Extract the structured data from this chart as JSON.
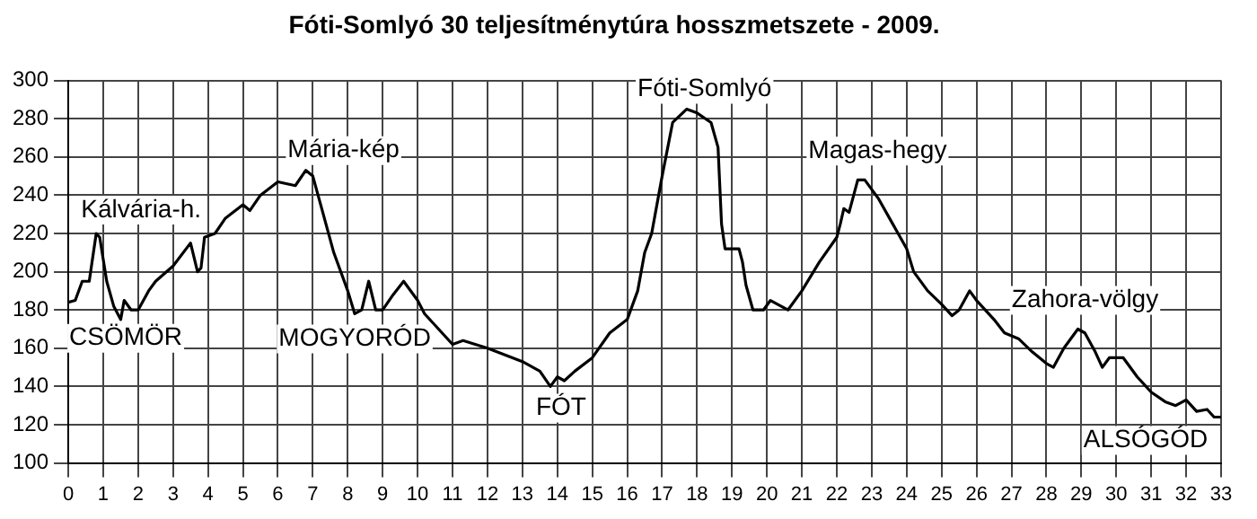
{
  "chart_data": {
    "type": "line",
    "title": "Fóti-Somlyó 30 teljesítménytúra hosszmetszete - 2009.",
    "series": [
      {
        "color": "#000000",
        "x": [
          0,
          0.2,
          0.4,
          0.6,
          0.8,
          0.9,
          1.1,
          1.3,
          1.5,
          1.6,
          1.8,
          2.0,
          2.3,
          2.5,
          3.0,
          3.5,
          3.7,
          3.8,
          3.9,
          4.2,
          4.5,
          5.0,
          5.2,
          5.5,
          6.0,
          6.5,
          6.8,
          7.0,
          7.3,
          7.6,
          8.0,
          8.2,
          8.4,
          8.6,
          8.8,
          9.0,
          9.3,
          9.6,
          10.0,
          10.2,
          10.6,
          11.0,
          11.3,
          12,
          13,
          13.5,
          13.8,
          14.0,
          14.2,
          14.5,
          15,
          15.5,
          16,
          16.3,
          16.5,
          16.7,
          16.9,
          17,
          17.3,
          17.7,
          18,
          18.4,
          18.6,
          18.7,
          18.8,
          19.2,
          19.3,
          19.4,
          19.6,
          19.9,
          20.1,
          20.6,
          21,
          21.5,
          22,
          22.1,
          22.2,
          22.35,
          22.6,
          22.8,
          23.2,
          23.6,
          24,
          24.2,
          24.6,
          25,
          25.3,
          25.5,
          25.8,
          26,
          26.5,
          26.8,
          27.2,
          27.6,
          28,
          28.2,
          28.5,
          28.9,
          29.1,
          29.4,
          29.6,
          29.8,
          30.2,
          30.6,
          31,
          31.4,
          31.7,
          32,
          32.3,
          32.6,
          32.8,
          33
        ],
        "values": [
          184,
          185,
          195,
          195,
          220,
          218,
          195,
          182,
          175,
          185,
          180,
          180,
          190,
          195,
          203,
          215,
          200,
          202,
          218,
          220,
          228,
          235,
          232,
          240,
          247,
          245,
          253,
          250,
          230,
          210,
          190,
          178,
          180,
          195,
          180,
          180,
          188,
          195,
          185,
          178,
          170,
          162,
          164,
          160,
          153,
          148,
          140,
          145,
          143,
          148,
          155,
          168,
          175,
          190,
          210,
          220,
          240,
          250,
          278,
          285,
          283,
          278,
          265,
          225,
          212,
          212,
          205,
          193,
          180,
          180,
          185,
          180,
          190,
          205,
          218,
          225,
          233,
          231,
          248,
          248,
          238,
          225,
          212,
          200,
          190,
          183,
          177,
          180,
          190,
          185,
          175,
          168,
          165,
          158,
          152,
          150,
          160,
          170,
          168,
          158,
          150,
          155,
          155,
          145,
          137,
          132,
          130,
          133,
          127,
          128,
          124,
          124
        ]
      }
    ],
    "xlim": [
      0,
      33
    ],
    "xticks": [
      0,
      1,
      2,
      3,
      4,
      5,
      6,
      7,
      8,
      9,
      10,
      11,
      12,
      13,
      14,
      15,
      16,
      17,
      18,
      19,
      20,
      21,
      22,
      23,
      24,
      25,
      26,
      27,
      28,
      29,
      30,
      31,
      32,
      33
    ],
    "ylim": [
      100,
      300
    ],
    "yticks": [
      100,
      120,
      140,
      160,
      180,
      200,
      220,
      240,
      260,
      280,
      300
    ],
    "grid": true,
    "legend": false,
    "marker": "none",
    "line_style": "solid",
    "annotations": [
      {
        "text": "Kálvária-h.",
        "x": 0.8,
        "y": 220
      },
      {
        "text": "CSÖMÖR",
        "x": 0,
        "y": 184
      },
      {
        "text": "Mária-kép",
        "x": 6.8,
        "y": 253
      },
      {
        "text": "MOGYORÓD",
        "x": 8.2,
        "y": 178
      },
      {
        "text": "FÓT",
        "x": 13.8,
        "y": 140
      },
      {
        "text": "Fóti-Somlyó",
        "x": 17.7,
        "y": 285
      },
      {
        "text": "Magas-hegy",
        "x": 22.6,
        "y": 248
      },
      {
        "text": "Zahora-völgy",
        "x": 28.9,
        "y": 170
      },
      {
        "text": "ALSÓGÓD",
        "x": 33,
        "y": 124
      }
    ]
  }
}
